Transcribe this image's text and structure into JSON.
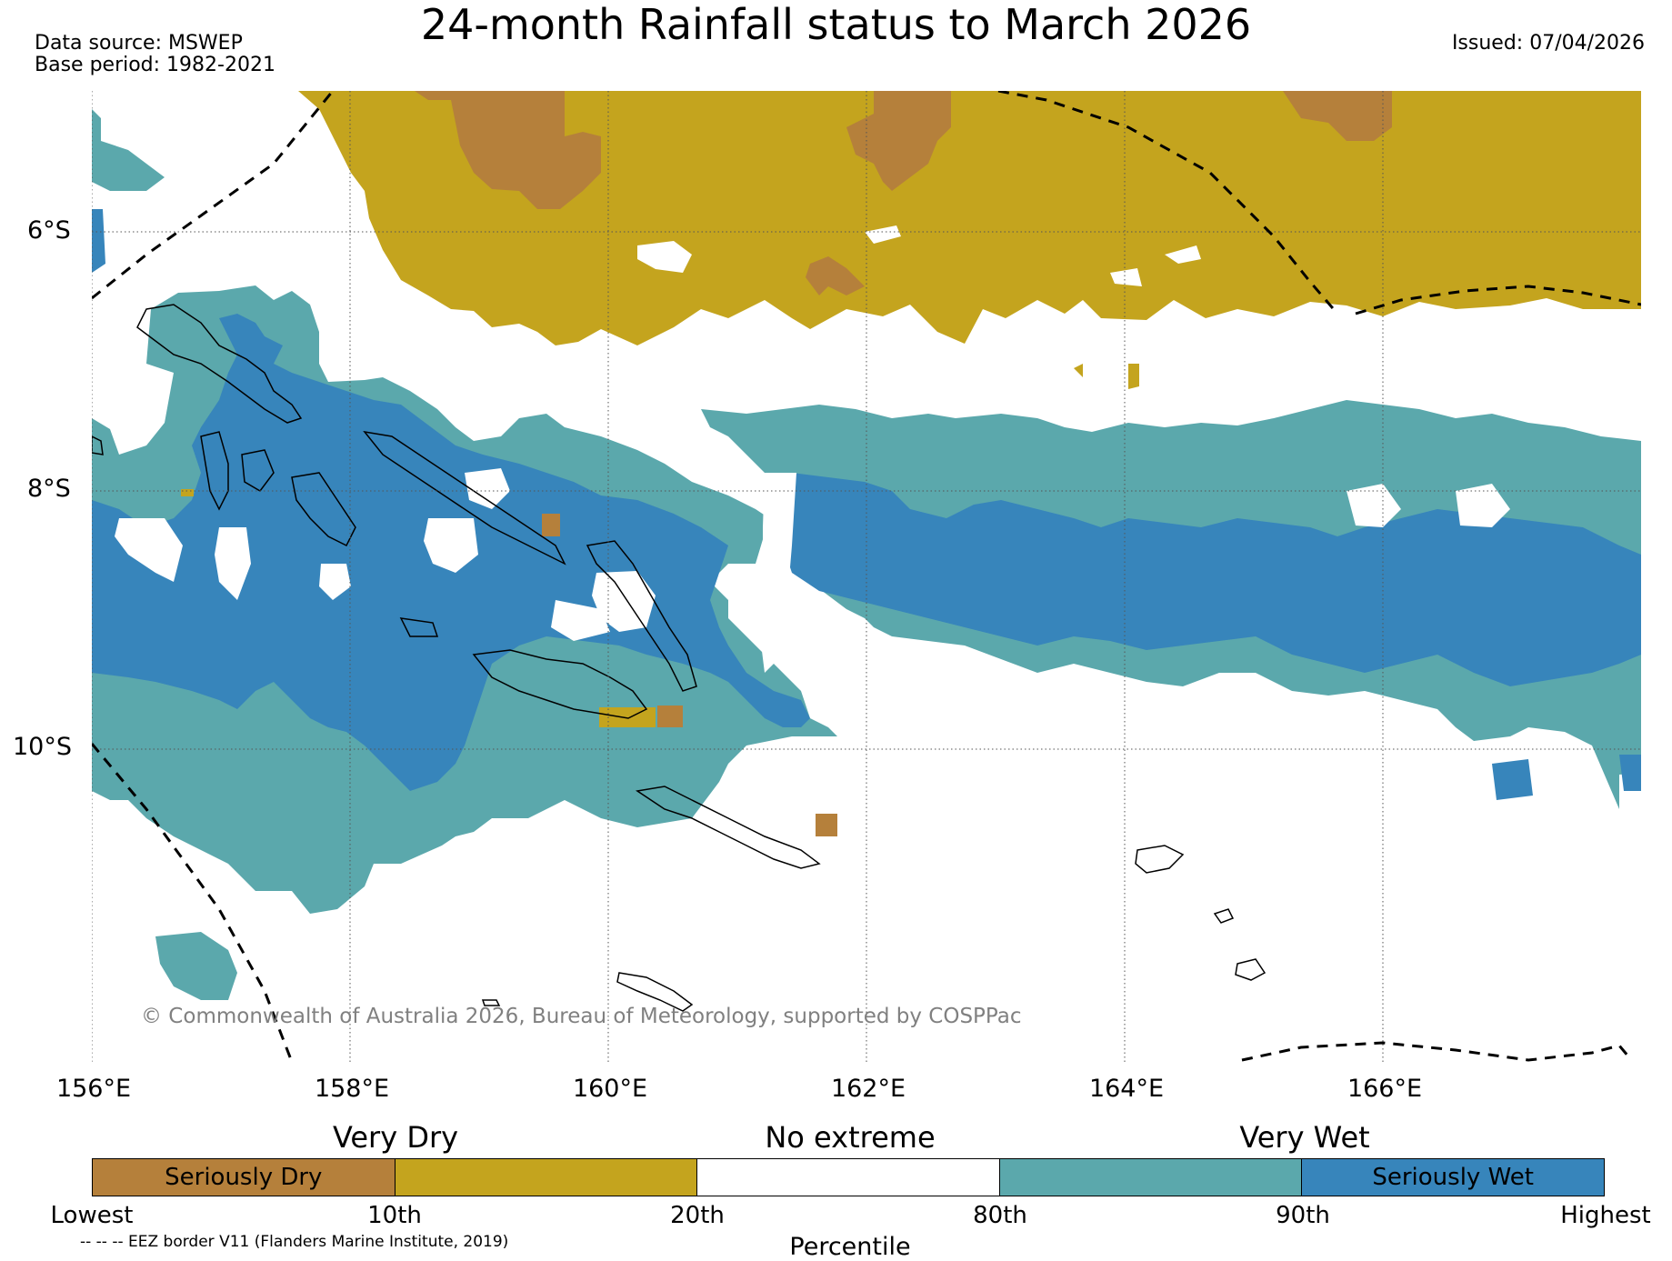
{
  "title": "24-month Rainfall status to March 2026",
  "data_source": "Data source: MSWEP",
  "base_period": "Base period: 1982-2021",
  "issued": "Issued: 07/04/2026",
  "copyright": "© Commonwealth of Australia 2026, Bureau of Meteorology, supported by COSPPac",
  "map": {
    "lon_range": [
      156,
      168
    ],
    "lat_range": [
      -12.2,
      -4.7
    ],
    "x_ticks": [
      "156°E",
      "158°E",
      "160°E",
      "162°E",
      "164°E",
      "166°E"
    ],
    "y_ticks": [
      "6°S",
      "8°S",
      "10°S"
    ],
    "gridlines": true,
    "eez_border": true,
    "coastlines": true
  },
  "legend": {
    "categories": [
      "Very Dry",
      "No extreme",
      "Very Wet"
    ],
    "segments": [
      {
        "label": "Seriously Dry",
        "color": "#b5803b"
      },
      {
        "label": "",
        "color": "#c4a41e"
      },
      {
        "label": "",
        "color": "#ffffff"
      },
      {
        "label": "",
        "color": "#5ba8ac"
      },
      {
        "label": "Seriously Wet",
        "color": "#3785bb"
      }
    ],
    "boundaries": [
      "Lowest",
      "10th",
      "20th",
      "80th",
      "90th",
      "Highest"
    ],
    "axis_label": "Percentile",
    "eez_note": "-- -- -- EEZ border V11 (Flanders Marine Institute, 2019)"
  }
}
